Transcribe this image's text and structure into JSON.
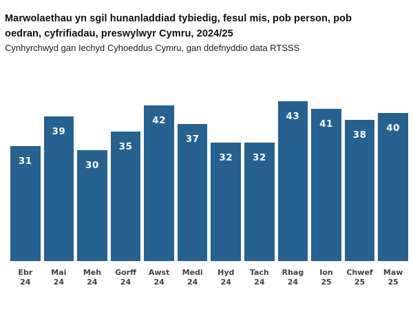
{
  "chart_data": {
    "type": "bar",
    "title": "Marwolaethau yn sgil hunanladdiad tybiedig, fesul mis, pob person, pob oedran, cyfrifiadau, preswylwyr Cymru, 2024/25",
    "subtitle": "Cynhyrchwyd gan Iechyd Cyhoeddus Cymru, gan ddefnyddio data RTSSS",
    "categories": [
      "Ebr 24",
      "Mai 24",
      "Meh 24",
      "Gorff 24",
      "Awst 24",
      "Medi 24",
      "Hyd 24",
      "Tach 24",
      "Rhag 24",
      "Ion 25",
      "Chwef 25",
      "Maw 25"
    ],
    "values": [
      31,
      39,
      30,
      35,
      42,
      37,
      32,
      32,
      43,
      41,
      38,
      40
    ],
    "ylim": [
      0,
      43
    ],
    "grid": false,
    "legend": "none",
    "data_labels": "inside-top",
    "bar_color": "#26618f",
    "value_label_color": "#ffffff",
    "axis_label_color": "#3f3f3f"
  }
}
